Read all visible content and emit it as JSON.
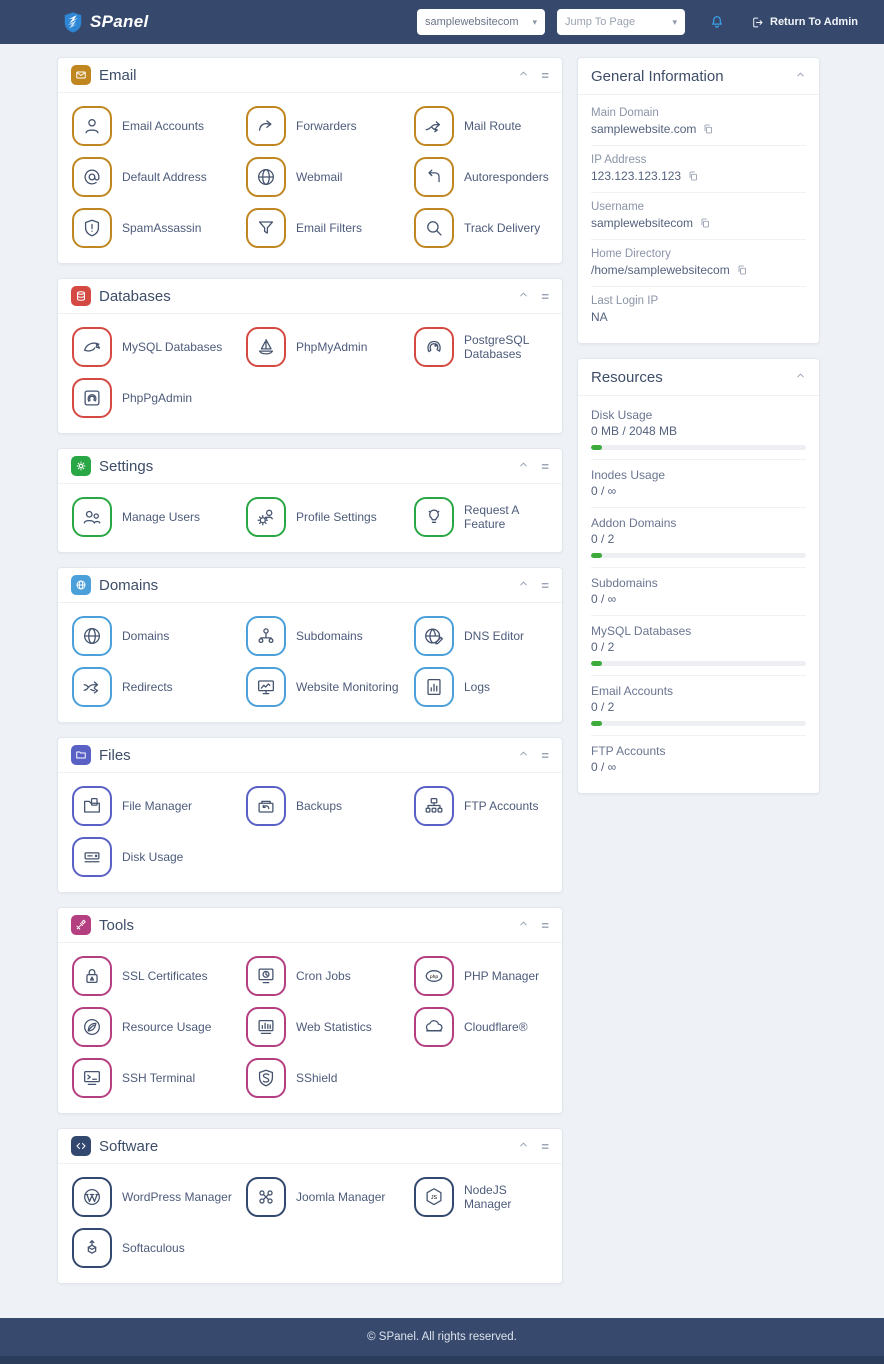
{
  "header": {
    "brand": "SPanel",
    "account_select": {
      "value": "samplewebsitecom"
    },
    "jump_select": {
      "placeholder": "Jump To Page"
    },
    "bell_icon": "notification-bell-icon",
    "return_label": "Return To Admin"
  },
  "accent_colors": {
    "email": "#c0861f",
    "databases": "#d44a43",
    "settings": "#2aa745",
    "domains": "#4ba0da",
    "files": "#5a61c5",
    "tools": "#b43f80",
    "software": "#33486e"
  },
  "sections": [
    {
      "title": "Email",
      "accent": "#c0861f",
      "icon": "envelope",
      "items": [
        {
          "label": "Email Accounts",
          "icon": "person"
        },
        {
          "label": "Forwarders",
          "icon": "arrow-forward"
        },
        {
          "label": "Mail Route",
          "icon": "route-split"
        },
        {
          "label": "Default Address",
          "icon": "at"
        },
        {
          "label": "Webmail",
          "icon": "globe"
        },
        {
          "label": "Autoresponders",
          "icon": "undo"
        },
        {
          "label": "SpamAssassin",
          "icon": "shield-alert"
        },
        {
          "label": "Email Filters",
          "icon": "funnel"
        },
        {
          "label": "Track Delivery",
          "icon": "search"
        }
      ]
    },
    {
      "title": "Databases",
      "accent": "#d44a43",
      "icon": "database",
      "items": [
        {
          "label": "MySQL Databases",
          "icon": "dolphin"
        },
        {
          "label": "PhpMyAdmin",
          "icon": "sailboat"
        },
        {
          "label": "PostgreSQL Databases",
          "icon": "elephant"
        },
        {
          "label": "PhpPgAdmin",
          "icon": "elephant-box"
        }
      ]
    },
    {
      "title": "Settings",
      "accent": "#2aa745",
      "icon": "gear",
      "items": [
        {
          "label": "Manage Users",
          "icon": "users"
        },
        {
          "label": "Profile Settings",
          "icon": "gear-person"
        },
        {
          "label": "Request A Feature",
          "icon": "bulb"
        }
      ]
    },
    {
      "title": "Domains",
      "accent": "#4ba0da",
      "icon": "globe",
      "items": [
        {
          "label": "Domains",
          "icon": "globe"
        },
        {
          "label": "Subdomains",
          "icon": "sitemap"
        },
        {
          "label": "DNS Editor",
          "icon": "globe-edit"
        },
        {
          "label": "Redirects",
          "icon": "shuffle"
        },
        {
          "label": "Website Monitoring",
          "icon": "monitor-chart"
        },
        {
          "label": "Logs",
          "icon": "doc-chart"
        }
      ]
    },
    {
      "title": "Files",
      "accent": "#5a61c5",
      "icon": "folder",
      "items": [
        {
          "label": "File Manager",
          "icon": "folder-file"
        },
        {
          "label": "Backups",
          "icon": "backup"
        },
        {
          "label": "FTP Accounts",
          "icon": "network"
        },
        {
          "label": "Disk Usage",
          "icon": "hdd"
        }
      ]
    },
    {
      "title": "Tools",
      "accent": "#b43f80",
      "icon": "tools",
      "items": [
        {
          "label": "SSL Certificates",
          "icon": "lock"
        },
        {
          "label": "Cron Jobs",
          "icon": "monitor-clock"
        },
        {
          "label": "PHP Manager",
          "icon": "php"
        },
        {
          "label": "Resource Usage",
          "icon": "leaf"
        },
        {
          "label": "Web Statistics",
          "icon": "bar-chart"
        },
        {
          "label": "Cloudflare®",
          "icon": "cloud"
        },
        {
          "label": "SSH Terminal",
          "icon": "terminal"
        },
        {
          "label": "SShield",
          "icon": "shield-s"
        }
      ]
    },
    {
      "title": "Software",
      "accent": "#33486e",
      "icon": "code",
      "items": [
        {
          "label": "WordPress Manager",
          "icon": "wordpress"
        },
        {
          "label": "Joomla Manager",
          "icon": "joomla"
        },
        {
          "label": "NodeJS Manager",
          "icon": "nodejs"
        },
        {
          "label": "Softaculous",
          "icon": "box-arrow"
        }
      ]
    }
  ],
  "general_info": {
    "title": "General Information",
    "fields": [
      {
        "label": "Main Domain",
        "value": "samplewebsite.com",
        "copy": true
      },
      {
        "label": "IP Address",
        "value": "123.123.123.123",
        "copy": true
      },
      {
        "label": "Username",
        "value": "samplewebsitecom",
        "copy": true
      },
      {
        "label": "Home Directory",
        "value": "/home/samplewebsitecom",
        "copy": true
      },
      {
        "label": "Last Login IP",
        "value": "NA",
        "copy": false
      }
    ]
  },
  "resources": {
    "title": "Resources",
    "bar_color": "#3cab3c",
    "items": [
      {
        "label": "Disk Usage",
        "value": "0 MB / 2048 MB",
        "bar": true,
        "pct": 5
      },
      {
        "label": "Inodes Usage",
        "value": "0 / ∞",
        "bar": false
      },
      {
        "label": "Addon Domains",
        "value": "0 / 2",
        "bar": true,
        "pct": 5
      },
      {
        "label": "Subdomains",
        "value": "0 / ∞",
        "bar": false
      },
      {
        "label": "MySQL Databases",
        "value": "0 / 2",
        "bar": true,
        "pct": 5
      },
      {
        "label": "Email Accounts",
        "value": "0 / 2",
        "bar": true,
        "pct": 5
      },
      {
        "label": "FTP Accounts",
        "value": "0 / ∞",
        "bar": false
      }
    ]
  },
  "footer": {
    "text": "© SPanel. All rights reserved."
  }
}
